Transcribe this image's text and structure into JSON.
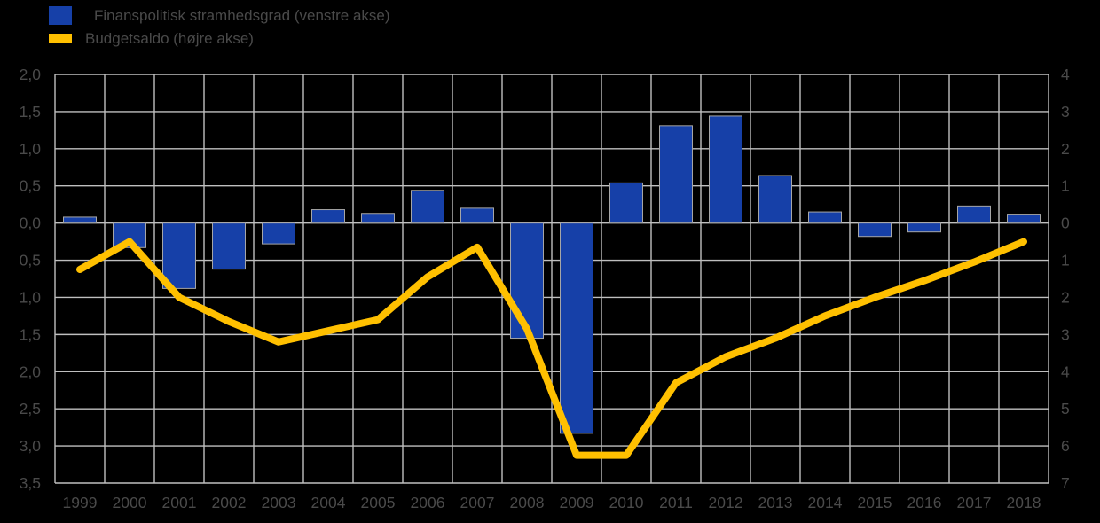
{
  "legend": {
    "items": [
      {
        "label": "Finanspolitisk stramhedsgrad (venstre akse)",
        "marker": "bar-swatch",
        "color": "#1640A8"
      },
      {
        "label": "Budgetsaldo (højre akse)",
        "marker": "line-swatch",
        "color": "#FFC000"
      }
    ]
  },
  "chart_data": {
    "type": "bar",
    "subtype": "bar-and-line-dual-axis",
    "categories": [
      "1999",
      "2000",
      "2001",
      "2002",
      "2003",
      "2004",
      "2005",
      "2006",
      "2007",
      "2008",
      "2009",
      "2010",
      "2011",
      "2012",
      "2013",
      "2014",
      "2015",
      "2016",
      "2017",
      "2018"
    ],
    "series": [
      {
        "name": "Finanspolitisk stramhedsgrad (venstre akse)",
        "type": "bar",
        "axis": "left",
        "color": "#1640A8",
        "stroke": "#A6A6A6",
        "values": [
          0.08,
          -0.33,
          -0.88,
          -0.62,
          -0.28,
          0.18,
          0.13,
          0.44,
          0.2,
          -1.55,
          -2.83,
          0.54,
          1.31,
          1.44,
          0.64,
          0.15,
          -0.18,
          -0.12,
          0.23,
          0.12
        ]
      },
      {
        "name": "Budgetsaldo (højre akse)",
        "type": "line",
        "axis": "right",
        "color": "#FFC000",
        "width": 8,
        "values": [
          -1.25,
          -0.5,
          -2.0,
          -2.65,
          -3.2,
          -2.9,
          -2.6,
          -1.45,
          -0.65,
          -2.85,
          -6.25,
          -6.25,
          -4.3,
          -3.6,
          -3.1,
          -2.5,
          -2.0,
          -1.55,
          -1.05,
          -0.5
        ]
      }
    ],
    "left_axis": {
      "min": -3.5,
      "max": 2.0,
      "step": 0.5,
      "tick_labels": [
        "2,0",
        "1,5",
        "1,0",
        "0,5",
        "0,0",
        "0,5",
        "1,0",
        "1,5",
        "2,0",
        "2,5",
        "3,0",
        "3,5"
      ]
    },
    "right_axis": {
      "min": -7,
      "max": 4,
      "step": 1,
      "tick_labels": [
        "4",
        "3",
        "2",
        "1",
        "0",
        "1",
        "2",
        "3",
        "4",
        "5",
        "6",
        "7"
      ]
    },
    "grid": true,
    "legend_position": "top-left",
    "background": "#000000",
    "gridline_color": "#BFBFBF",
    "text_color": "#4a4a4a"
  }
}
